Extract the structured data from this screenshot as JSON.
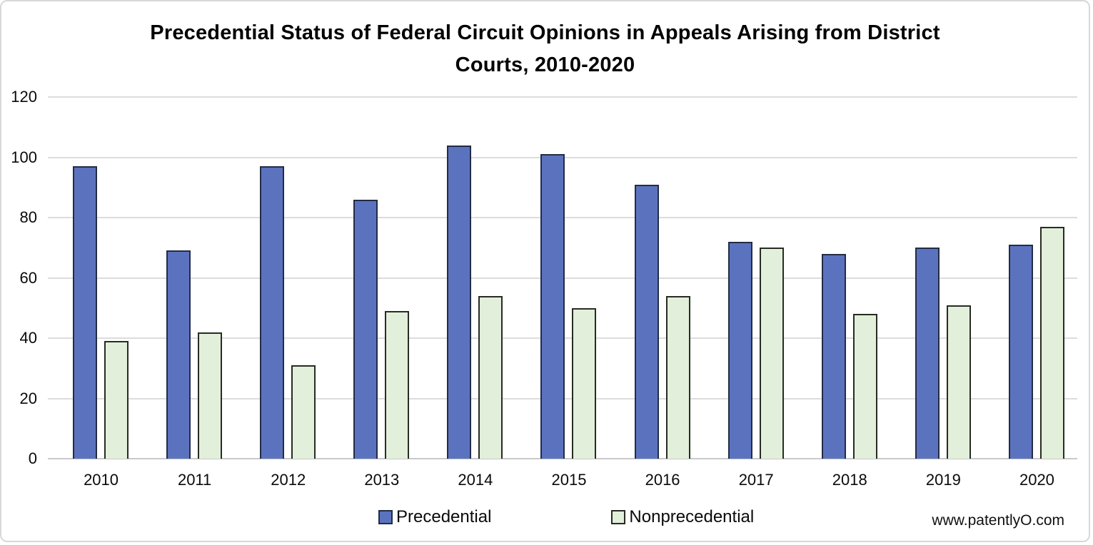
{
  "title": {
    "line1": "Precedential Status of Federal Circuit Opinions in Appeals Arising from District",
    "line2": "Courts, 2010-2020"
  },
  "watermark": "www.patentlyO.com",
  "legend": {
    "items": [
      {
        "label": "Precedential",
        "color": "#5b73bf",
        "border": "#232c45"
      },
      {
        "label": "Nonprecedential",
        "color": "#e2efda",
        "border": "#272c22"
      }
    ],
    "position": "bottom-center"
  },
  "colors": {
    "precedential_fill": "#5b73bf",
    "precedential_border": "#232c45",
    "nonprecedential_fill": "#e2efda",
    "nonprecedential_border": "#272c22",
    "gridline": "#dcdcdc",
    "frame_border": "#d8d8d8",
    "background": "#ffffff"
  },
  "chart_data": {
    "type": "bar",
    "title": "Precedential Status of Federal Circuit Opinions in Appeals Arising from District Courts, 2010-2020",
    "categories": [
      "2010",
      "2011",
      "2012",
      "2013",
      "2014",
      "2015",
      "2016",
      "2017",
      "2018",
      "2019",
      "2020"
    ],
    "series": [
      {
        "name": "Precedential",
        "color": "#5b73bf",
        "values": [
          97,
          69,
          97,
          86,
          104,
          101,
          91,
          72,
          68,
          70,
          71
        ]
      },
      {
        "name": "Nonprecedential",
        "color": "#e2efda",
        "values": [
          39,
          42,
          31,
          49,
          54,
          50,
          54,
          70,
          48,
          51,
          77
        ]
      }
    ],
    "xlabel": "",
    "ylabel": "",
    "ylim": [
      0,
      120
    ],
    "y_ticks": [
      0,
      20,
      40,
      60,
      80,
      100,
      120
    ],
    "grid": true,
    "legend_position": "bottom",
    "annotation": "www.patentlyO.com"
  }
}
